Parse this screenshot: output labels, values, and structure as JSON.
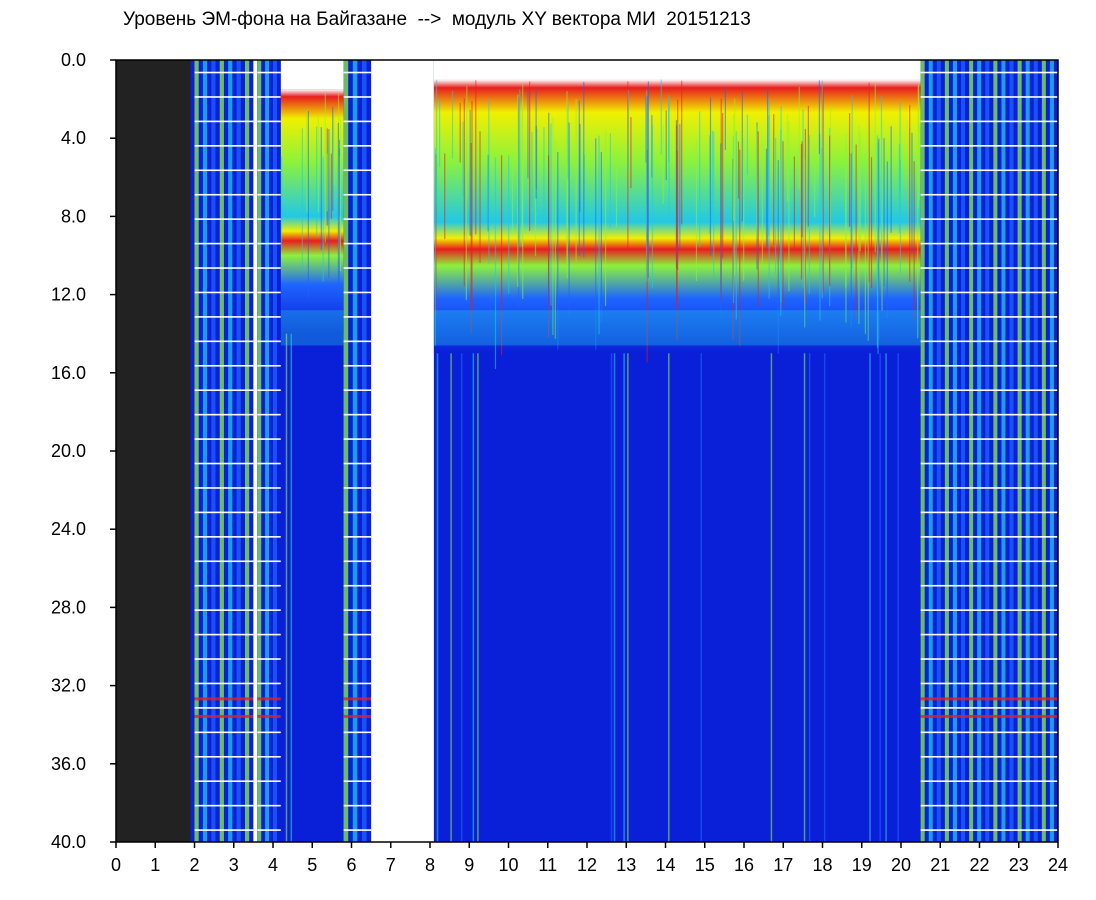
{
  "chart_data": {
    "type": "heatmap",
    "title": "Уровень ЭМ-фона на Байгазане  -->  модуль XY вектора МИ  20151213",
    "xlabel": "",
    "ylabel": "",
    "xlim": [
      0,
      24
    ],
    "ylim": [
      0,
      40
    ],
    "y_inverted": true,
    "x_ticks": [
      "0",
      "1",
      "2",
      "3",
      "4",
      "5",
      "6",
      "7",
      "8",
      "9",
      "10",
      "11",
      "12",
      "13",
      "14",
      "15",
      "16",
      "17",
      "18",
      "19",
      "20",
      "21",
      "22",
      "23",
      "24"
    ],
    "y_ticks": [
      "0.0",
      "4.0",
      "8.0",
      "12.0",
      "16.0",
      "20.0",
      "24.0",
      "28.0",
      "32.0",
      "36.0",
      "40.0"
    ],
    "colorscale": [
      "#0a1fd8",
      "#1e64ff",
      "#22c8e6",
      "#8cf23c",
      "#f0f000",
      "#e81e1e"
    ],
    "gap_color": "#222222",
    "no_data_color": "#ffffff",
    "segments": [
      {
        "x": [
          0,
          1.9
        ],
        "kind": "no-data-dark"
      },
      {
        "x": [
          2.0,
          3.5
        ],
        "kind": "striped-comb"
      },
      {
        "x": [
          3.5,
          3.6
        ],
        "kind": "blank"
      },
      {
        "x": [
          3.6,
          4.2
        ],
        "kind": "striped-comb"
      },
      {
        "x": [
          4.2,
          5.8
        ],
        "kind": "active",
        "band_top_y": 1.5,
        "band_bottom_y": 14
      },
      {
        "x": [
          5.8,
          6.5
        ],
        "kind": "striped-comb"
      },
      {
        "x": [
          6.5,
          8.1
        ],
        "kind": "blank"
      },
      {
        "x": [
          8.1,
          20.5
        ],
        "kind": "active",
        "band_top_y": 1.0,
        "band_bottom_y": 15
      },
      {
        "x": [
          20.5,
          24.0
        ],
        "kind": "striped-comb"
      }
    ]
  }
}
